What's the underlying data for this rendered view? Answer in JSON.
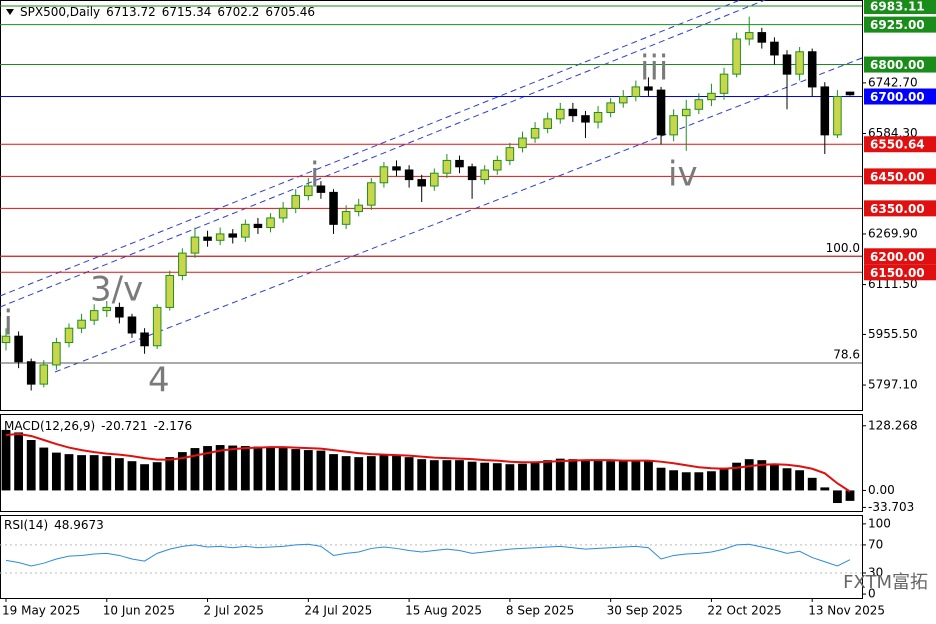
{
  "chart_data": [
    {
      "type": "candlestick",
      "title": "SPX500,Daily",
      "categories": [
        "19 May 2025",
        null,
        null,
        null,
        null,
        null,
        null,
        null,
        "10 Jun 2025",
        null,
        null,
        null,
        null,
        null,
        null,
        null,
        "2 Jul 2025",
        null,
        null,
        null,
        null,
        null,
        null,
        null,
        "24 Jul 2025",
        null,
        null,
        null,
        null,
        null,
        null,
        null,
        "15 Aug 2025",
        null,
        null,
        null,
        null,
        null,
        null,
        null,
        "8 Sep 2025",
        null,
        null,
        null,
        null,
        null,
        null,
        null,
        "30 Sep 2025",
        null,
        null,
        null,
        null,
        null,
        null,
        null,
        "22 Oct 2025",
        null,
        null,
        null,
        null,
        null,
        null,
        null,
        "13 Nov 2025",
        null,
        null,
        null
      ],
      "open": [
        5930,
        5950,
        5870,
        5800,
        5860,
        5930,
        5975,
        6000,
        6030,
        6040,
        6010,
        5960,
        5920,
        6040,
        6140,
        6210,
        6260,
        6250,
        6270,
        6260,
        6300,
        6290,
        6320,
        6350,
        6390,
        6420,
        6400,
        6300,
        6340,
        6360,
        6430,
        6480,
        6470,
        6440,
        6420,
        6460,
        6500,
        6480,
        6440,
        6470,
        6500,
        6540,
        6570,
        6600,
        6630,
        6660,
        6640,
        6620,
        6650,
        6680,
        6700,
        6730,
        6720,
        6580,
        6640,
        6660,
        6690,
        6710,
        6770,
        6880,
        6900,
        6870,
        6830,
        6770,
        6840,
        6730,
        6580,
        6713.72
      ],
      "high": [
        5975,
        5965,
        5880,
        5875,
        5945,
        5990,
        6020,
        6050,
        6060,
        6055,
        6020,
        5975,
        6050,
        6155,
        6225,
        6290,
        6280,
        6290,
        6285,
        6315,
        6320,
        6335,
        6370,
        6410,
        6445,
        6435,
        6410,
        6360,
        6380,
        6445,
        6495,
        6500,
        6485,
        6455,
        6475,
        6520,
        6515,
        6490,
        6485,
        6515,
        6555,
        6590,
        6620,
        6650,
        6680,
        6680,
        6655,
        6670,
        6695,
        6720,
        6750,
        6760,
        6730,
        6660,
        6690,
        6710,
        6740,
        6790,
        6900,
        6950,
        6915,
        6885,
        6845,
        6855,
        6850,
        6745,
        6720,
        6715.34
      ],
      "low": [
        5905,
        5850,
        5780,
        5790,
        5845,
        5915,
        5960,
        5985,
        6010,
        5990,
        5945,
        5895,
        5910,
        6030,
        6125,
        6195,
        6230,
        6235,
        6240,
        6245,
        6270,
        6275,
        6305,
        6335,
        6375,
        6380,
        6270,
        6285,
        6325,
        6345,
        6415,
        6450,
        6415,
        6370,
        6405,
        6445,
        6460,
        6380,
        6425,
        6455,
        6485,
        6525,
        6555,
        6585,
        6615,
        6620,
        6570,
        6600,
        6635,
        6665,
        6685,
        6700,
        6550,
        6560,
        6530,
        6645,
        6670,
        6690,
        6760,
        6860,
        6850,
        6800,
        6660,
        6750,
        6700,
        6520,
        6570,
        6702.2
      ],
      "close": [
        5950,
        5870,
        5800,
        5860,
        5930,
        5975,
        6000,
        6030,
        6040,
        6010,
        5960,
        5920,
        6040,
        6140,
        6210,
        6260,
        6250,
        6270,
        6260,
        6300,
        6290,
        6320,
        6350,
        6390,
        6420,
        6400,
        6300,
        6340,
        6360,
        6430,
        6480,
        6470,
        6440,
        6420,
        6460,
        6500,
        6480,
        6440,
        6470,
        6500,
        6540,
        6570,
        6600,
        6630,
        6660,
        6640,
        6620,
        6650,
        6680,
        6700,
        6730,
        6720,
        6580,
        6640,
        6660,
        6690,
        6710,
        6770,
        6880,
        6900,
        6870,
        6830,
        6770,
        6840,
        6730,
        6580,
        6700,
        6705.46
      ],
      "up_color": "#c9d64c",
      "down_color": "#000000",
      "wick_color": "#1f8f1f",
      "ylim": [
        5719,
        7002
      ],
      "yticks": [
        {
          "value": 6742.7,
          "label": "6742.70"
        },
        {
          "value": 6584.3,
          "label": "6584.30"
        },
        {
          "value": 6269.9,
          "label": "6269.90"
        },
        {
          "value": 6111.5,
          "label": "6111.50"
        },
        {
          "value": 5955.5,
          "label": "5955.50"
        },
        {
          "value": 5797.1,
          "label": "5797.10"
        }
      ],
      "levels": [
        {
          "value": 6983.11,
          "label": "6983.11",
          "color": "#1a8c1a"
        },
        {
          "value": 6925,
          "label": "6925.00",
          "color": "#1a8c1a"
        },
        {
          "value": 6800,
          "label": "6800.00",
          "color": "#1a8c1a"
        },
        {
          "value": 6700,
          "label": "6700.00",
          "color": "#0000ff"
        },
        {
          "value": 6550.64,
          "label": "6550.64",
          "color": "#e01010"
        },
        {
          "value": 6450,
          "label": "6450.00",
          "color": "#e01010"
        },
        {
          "value": 6350,
          "label": "6350.00",
          "color": "#e01010"
        },
        {
          "value": 6200,
          "label": "6200.00",
          "color": "#e01010"
        },
        {
          "value": 6150,
          "label": "6150.00",
          "color": "#e01010"
        }
      ],
      "fib_levels": [
        {
          "label": "100.0",
          "price": 6200
        },
        {
          "label": "78.6",
          "price": 5866
        }
      ],
      "annotations": [
        "ii",
        "3/v",
        "4",
        "i",
        "iii",
        "iv"
      ],
      "watermark": "FXTM富拓"
    },
    {
      "type": "macd",
      "title": "MACD(12,26,9)",
      "values": [
        120,
        115,
        100,
        85,
        75,
        72,
        70,
        70,
        68,
        64,
        58,
        52,
        56,
        66,
        76,
        84,
        88,
        90,
        89,
        88,
        87,
        86,
        84,
        82,
        80,
        79,
        72,
        68,
        66,
        68,
        70,
        69,
        66,
        62,
        60,
        60,
        60,
        57,
        55,
        54,
        52,
        53,
        56,
        60,
        63,
        62,
        60,
        59,
        58,
        58,
        59,
        58,
        45,
        40,
        36,
        36,
        38,
        45,
        55,
        62,
        60,
        52,
        44,
        40,
        25,
        6,
        -25,
        -20.721
      ],
      "signal": [
        110,
        112,
        108,
        100,
        92,
        85,
        80,
        76,
        73,
        71,
        68,
        64,
        61,
        61,
        64,
        69,
        74,
        79,
        82,
        84,
        85,
        86,
        86,
        85,
        84,
        83,
        80,
        77,
        74,
        72,
        71,
        70,
        69,
        67,
        65,
        64,
        63,
        62,
        60,
        59,
        57,
        56,
        56,
        57,
        58,
        59,
        60,
        60,
        60,
        59,
        59,
        59,
        57,
        54,
        50,
        46,
        44,
        43,
        45,
        48,
        51,
        52,
        51,
        48,
        43,
        34,
        14,
        -2.176
      ],
      "color": "#000000",
      "signal_color": "#e01010",
      "ylim": [
        -40.8,
        149.6
      ],
      "yticks": [
        128.268,
        {
          "value": 0,
          "label": "0.00"
        },
        -33.703
      ]
    },
    {
      "type": "rsi",
      "title": "RSI(14)",
      "values": [
        48,
        45,
        40,
        44,
        50,
        54,
        55,
        57,
        58,
        55,
        50,
        47,
        58,
        64,
        68,
        70,
        67,
        68,
        66,
        68,
        66,
        67,
        68,
        70,
        71,
        68,
        55,
        58,
        60,
        65,
        67,
        65,
        62,
        60,
        62,
        64,
        62,
        58,
        60,
        62,
        64,
        65,
        66,
        67,
        68,
        66,
        64,
        65,
        66,
        67,
        68,
        66,
        50,
        55,
        57,
        58,
        60,
        64,
        70,
        71,
        67,
        63,
        58,
        61,
        52,
        46,
        40,
        48.9673
      ],
      "color": "#2a8be0",
      "ylim": [
        -5.6,
        111.2
      ],
      "yticks": [
        100,
        70,
        30,
        0
      ],
      "dotted_levels": [
        70,
        30
      ]
    }
  ]
}
